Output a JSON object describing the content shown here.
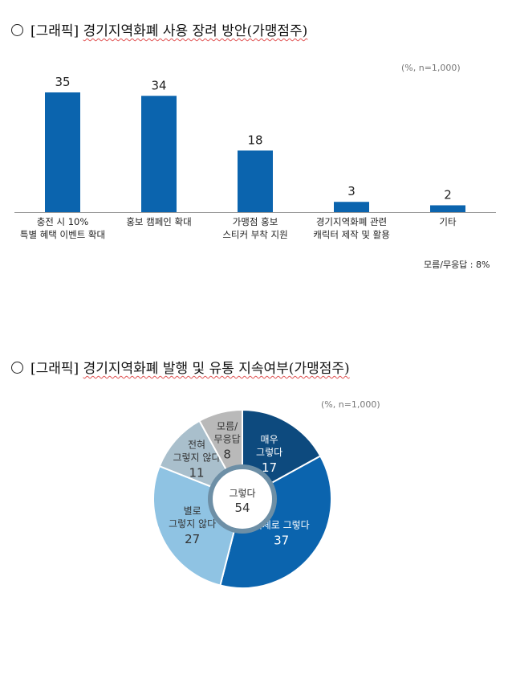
{
  "section1": {
    "title_prefix": "[그래픽]",
    "title_main": "경기지역화폐 사용 장려 방안(가맹점주)",
    "unit_note": "(%, n=1,000)",
    "footnote": "모름/무응답 : 8%"
  },
  "section2": {
    "title_prefix": "[그래픽]",
    "title_main": "경기지역화폐 발행 및 유통 지속여부(가맹점주)",
    "unit_note": "(%, n=1,000)"
  },
  "chart_data": [
    {
      "type": "bar",
      "categories": [
        [
          "충전 시 10%",
          "특별 혜택 이벤트 확대"
        ],
        [
          "홍보 캠페인 확대"
        ],
        [
          "가맹점 홍보",
          "스티커 부착 지원"
        ],
        [
          "경기지역화폐 관련",
          "캐릭터 제작 및 활용"
        ],
        [
          "기타"
        ]
      ],
      "values": [
        35,
        34,
        18,
        3,
        2
      ],
      "value_labels": [
        "35",
        "34",
        "18",
        "3",
        "2"
      ],
      "ylim": [
        0,
        40
      ],
      "grid": false,
      "color": "#0b64ae"
    },
    {
      "type": "pie",
      "donut": true,
      "slices": [
        {
          "label": [
            "매우",
            "그렇다"
          ],
          "value": 17,
          "value_label": "17",
          "color": "#0d4a7e",
          "text_color": "#ffffff"
        },
        {
          "label": [
            "대체로 그렇다"
          ],
          "value": 37,
          "value_label": "37",
          "color": "#0b64ae",
          "text_color": "#ffffff"
        },
        {
          "label": [
            "별로",
            "그렇지 않다"
          ],
          "value": 27,
          "value_label": "27",
          "color": "#8fc3e3",
          "text_color": "#333333"
        },
        {
          "label": [
            "전혀",
            "그렇지 않다"
          ],
          "value": 11,
          "value_label": "11",
          "color": "#a9bfcc",
          "text_color": "#333333"
        },
        {
          "label": [
            "모름/",
            "무응답"
          ],
          "value": 8,
          "value_label": "8",
          "color": "#b9b9b9",
          "text_color": "#333333"
        }
      ],
      "center_label": "그렇다",
      "center_value": "54",
      "ring_color": "#6d8fa6"
    }
  ]
}
